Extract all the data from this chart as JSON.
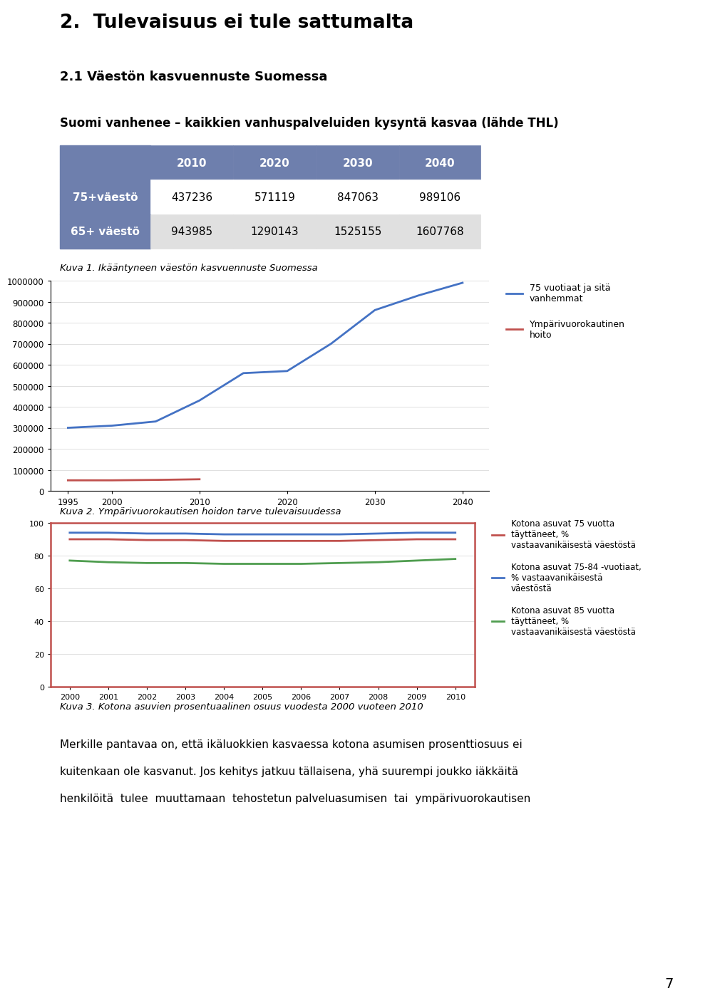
{
  "page_title": "2.  Tulevaisuus ei tule sattumalta",
  "section_title": "2.1 Väestön kasvuennuste Suomessa",
  "subtitle": "Suomi vanhenee – kaikkien vanhuspalveluiden kysyntä kasvaa (lähde THL)",
  "table_header": [
    "",
    "2010",
    "2020",
    "2030",
    "2040"
  ],
  "table_row1_label": "75+väestö",
  "table_row1_values": [
    "437236",
    "571119",
    "847063",
    "989106"
  ],
  "table_row2_label": "65+ väestö",
  "table_row2_values": [
    "943985",
    "1290143",
    "1525155",
    "1607768"
  ],
  "table_header_color": "#6e7fad",
  "table_label_color": "#6e7fad",
  "table_row2_bg": "#e0e0e0",
  "caption1": "Kuva 1. Ikääntyneen väestön kasvuennuste Suomessa",
  "chart1_years": [
    1995,
    2000,
    2005,
    2010,
    2015,
    2020,
    2025,
    2030,
    2035,
    2040
  ],
  "chart1_75plus": [
    300000,
    310000,
    330000,
    430000,
    560000,
    570000,
    700000,
    860000,
    930000,
    990000
  ],
  "chart1_red_years": [
    1995,
    2000,
    2005,
    2010
  ],
  "chart1_red_vals": [
    50000,
    50000,
    52000,
    55000
  ],
  "chart1_blue_color": "#4472c4",
  "chart1_red_color": "#c0504d",
  "chart1_yticks": [
    0,
    100000,
    200000,
    300000,
    400000,
    500000,
    600000,
    700000,
    800000,
    900000,
    1000000
  ],
  "chart1_xticks": [
    1995,
    2000,
    2010,
    2020,
    2030,
    2040
  ],
  "chart1_legend1": "75 vuotiaat ja sitä\nvanhemmat",
  "chart1_legend2": "Ympärivuorokautinen\nhoito",
  "caption2": "Kuva 2. Ympärivuorokautisen hoidon tarve tulevaisuudessa",
  "chart2_years": [
    2000,
    2001,
    2002,
    2003,
    2004,
    2005,
    2006,
    2007,
    2008,
    2009,
    2010
  ],
  "chart2_75plus_home": [
    90,
    90,
    89.5,
    89.5,
    89,
    89,
    89,
    89,
    89.5,
    90,
    90
  ],
  "chart2_7584_home": [
    94,
    94,
    93.5,
    93.5,
    93,
    93,
    93,
    93,
    93.5,
    94,
    94
  ],
  "chart2_85plus_home": [
    77,
    76,
    75.5,
    75.5,
    75,
    75,
    75,
    75.5,
    76,
    77,
    78
  ],
  "chart2_pink_color": "#c0504d",
  "chart2_blue_color": "#4472c4",
  "chart2_green_color": "#4f9d4f",
  "chart2_yticks": [
    0,
    20,
    40,
    60,
    80,
    100
  ],
  "chart2_legend1": "Kotona asuvat 75 vuotta\ntäyttäneet, %\nvastaavanikäisestä väestöstä",
  "chart2_legend2": "Kotona asuvat 75-84 -vuotiaat,\n% vastaavanikäisestä\nväestöstä",
  "chart2_legend3": "Kotona asuvat 85 vuotta\ntäyttäneet, %\nvastaavanikäisestä väestöstä",
  "chart2_border_color": "#c0504d",
  "caption3": "Kuva 3. Kotona asuvien prosentuaalinen osuus vuodesta 2000 vuoteen 2010",
  "body_line1": "Merkille pantavaa on, että ikäluokkien kasvaessa kotona asumisen prosenttiosuus ei",
  "body_line2": "kuitenkaan ole kasvanut. Jos kehitys jatkuu tällaisena, yhä suurempi joukko iäkkäitä",
  "body_line3": "henkilöitä  tulee  muuttamaan  tehostetun palveluasumisen  tai  ympärivuorokautisen",
  "page_number": "7"
}
